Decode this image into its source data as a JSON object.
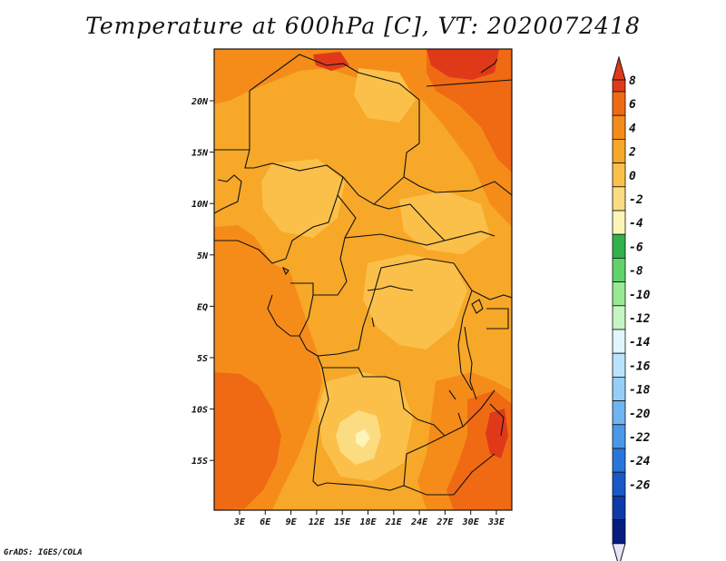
{
  "title": "Temperature at 600hPa [C], VT: 2020072418",
  "credit": "GrADS: IGES/COLA",
  "map": {
    "lon_labels": [
      "3E",
      "6E",
      "9E",
      "12E",
      "15E",
      "18E",
      "21E",
      "24E",
      "27E",
      "30E",
      "33E"
    ],
    "lat_labels": [
      "20N",
      "15N",
      "10N",
      "5N",
      "EQ",
      "5S",
      "10S",
      "15S"
    ]
  },
  "colorbar": {
    "labels": [
      "8",
      "6",
      "4",
      "2",
      "0",
      "-2",
      "-4",
      "-6",
      "-8",
      "-10",
      "-12",
      "-14",
      "-16",
      "-18",
      "-20",
      "-22",
      "-24",
      "-26"
    ],
    "colors": [
      "#e0391a",
      "#f06a14",
      "#f58c1a",
      "#f7a828",
      "#fbc04a",
      "#fcdc80",
      "#fdf5b8",
      "#33b14a",
      "#5fd36a",
      "#97ea93",
      "#c4f5c2",
      "#e0f5fc",
      "#b9e3fb",
      "#95cff7",
      "#6fb5f1",
      "#4a98e8",
      "#2876db",
      "#1858c7",
      "#0d3aa8",
      "#061c80"
    ],
    "top_color": "#e0391a",
    "bottom_color": "#e6e4fb"
  }
}
